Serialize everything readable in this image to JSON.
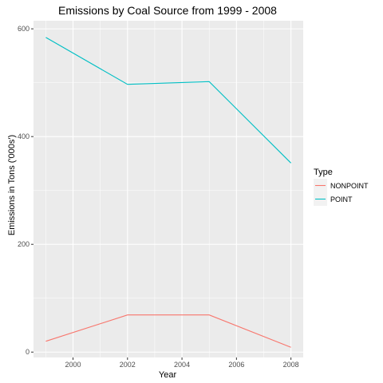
{
  "chart_data": {
    "type": "line",
    "title": "Emissions by Coal Source from 1999 - 2008",
    "xlabel": "Year",
    "ylabel": "Emissions in Tons ('000s')",
    "x": [
      1999,
      2002,
      2005,
      2008
    ],
    "xlim": [
      1998.55,
      2008.45
    ],
    "ylim": [
      -10,
      615
    ],
    "x_ticks": [
      2000,
      2002,
      2004,
      2006,
      2008
    ],
    "y_ticks": [
      0,
      200,
      400,
      600
    ],
    "x_tick_labels": [
      "2000",
      "2002",
      "2004",
      "2006",
      "2008"
    ],
    "y_tick_labels": [
      "0",
      "200",
      "400",
      "600"
    ],
    "series": [
      {
        "name": "NONPOINT",
        "color": "#F8766D",
        "values": [
          20,
          69,
          69,
          9
        ]
      },
      {
        "name": "POINT",
        "color": "#00BFC4",
        "values": [
          584,
          497,
          502,
          351
        ]
      }
    ],
    "grid": true,
    "panel_background": "#EBEBEB",
    "gridline_color": "#FFFFFF",
    "legend": {
      "title": "Type",
      "placement": "right"
    }
  }
}
